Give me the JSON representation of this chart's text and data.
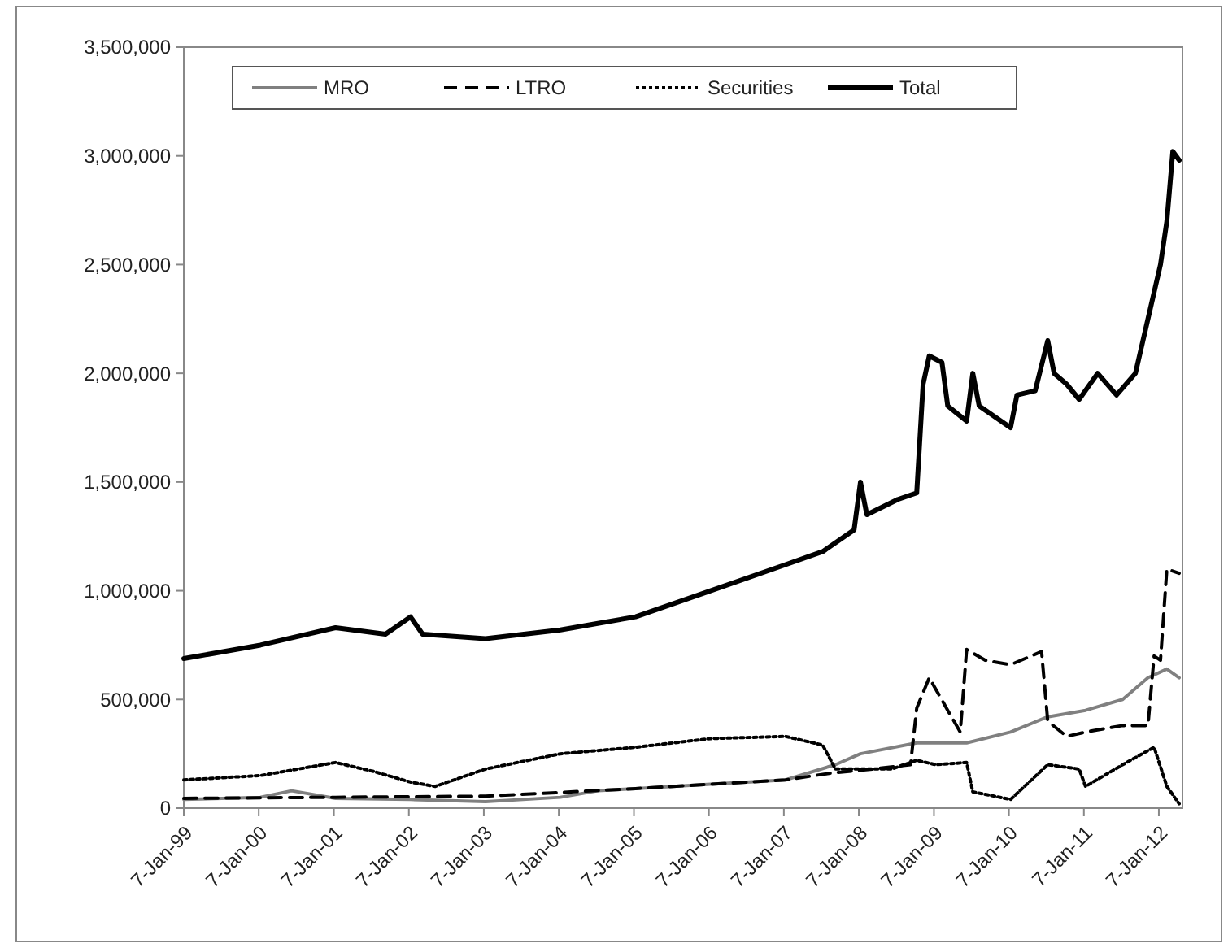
{
  "chart_data": {
    "type": "line",
    "legend": "top",
    "grid": false,
    "xlim": [
      "1999-01-07",
      "2012-05-01"
    ],
    "xticks": [
      {
        "value": "1999-01-07",
        "label": "7-Jan-99"
      },
      {
        "value": "2000-01-07",
        "label": "7-Jan-00"
      },
      {
        "value": "2001-01-07",
        "label": "7-Jan-01"
      },
      {
        "value": "2002-01-07",
        "label": "7-Jan-02"
      },
      {
        "value": "2003-01-07",
        "label": "7-Jan-03"
      },
      {
        "value": "2004-01-07",
        "label": "7-Jan-04"
      },
      {
        "value": "2005-01-07",
        "label": "7-Jan-05"
      },
      {
        "value": "2006-01-07",
        "label": "7-Jan-06"
      },
      {
        "value": "2007-01-07",
        "label": "7-Jan-07"
      },
      {
        "value": "2008-01-07",
        "label": "7-Jan-08"
      },
      {
        "value": "2009-01-07",
        "label": "7-Jan-09"
      },
      {
        "value": "2010-01-07",
        "label": "7-Jan-10"
      },
      {
        "value": "2011-01-07",
        "label": "7-Jan-11"
      },
      {
        "value": "2012-01-07",
        "label": "7-Jan-12"
      }
    ],
    "ylim": [
      0,
      3500000
    ],
    "yticks": [
      {
        "value": 0,
        "label": "0"
      },
      {
        "value": 500000,
        "label": "500,000"
      },
      {
        "value": 1000000,
        "label": "1,000,000"
      },
      {
        "value": 1500000,
        "label": "1,500,000"
      },
      {
        "value": 2000000,
        "label": "2,000,000"
      },
      {
        "value": 2500000,
        "label": "2,500,000"
      },
      {
        "value": 3000000,
        "label": "3,000,000"
      },
      {
        "value": 3500000,
        "label": "3,500,000"
      }
    ],
    "series": [
      {
        "name": "MRO",
        "color": "#808080",
        "line_style": "solid",
        "x": [
          "1999-01-07",
          "2000-01",
          "2000-06",
          "2001-01",
          "2002-01",
          "2003-01",
          "2004-01",
          "2004-07",
          "2005-01",
          "2006-01",
          "2007-01",
          "2007-09",
          "2008-01",
          "2008-10",
          "2009-06",
          "2010-01",
          "2010-07",
          "2011-01",
          "2011-07",
          "2011-11",
          "2012-02",
          "2012-04"
        ],
        "values": [
          40000,
          50000,
          80000,
          45000,
          40000,
          30000,
          50000,
          80000,
          90000,
          110000,
          130000,
          200000,
          250000,
          300000,
          300000,
          350000,
          420000,
          450000,
          500000,
          600000,
          640000,
          600000
        ]
      },
      {
        "name": "LTRO",
        "color": "#000000",
        "line_style": "dashed",
        "x": [
          "1999-01-07",
          "2001-01",
          "2003-01",
          "2005-01",
          "2007-01",
          "2007-08",
          "2008-03",
          "2008-09",
          "2008-10",
          "2008-12",
          "2009-03",
          "2009-05",
          "2009-06",
          "2009-09",
          "2010-01",
          "2010-06",
          "2010-07",
          "2010-10",
          "2011-01",
          "2011-07",
          "2011-11",
          "2011-12",
          "2012-01",
          "2012-02",
          "2012-04"
        ],
        "values": [
          45000,
          50000,
          55000,
          90000,
          130000,
          160000,
          180000,
          200000,
          460000,
          600000,
          450000,
          350000,
          730000,
          680000,
          660000,
          720000,
          400000,
          330000,
          350000,
          380000,
          380000,
          700000,
          680000,
          1100000,
          1080000
        ]
      },
      {
        "name": "Securities",
        "color": "#000000",
        "line_style": "dotted",
        "x": [
          "1999-01-07",
          "2000-01",
          "2001-01",
          "2001-07",
          "2002-01",
          "2002-05",
          "2003-01",
          "2004-01",
          "2005-01",
          "2006-01",
          "2007-01",
          "2007-07",
          "2007-09",
          "2008-06",
          "2008-10",
          "2009-01",
          "2009-06",
          "2009-07",
          "2010-01",
          "2010-07",
          "2010-12",
          "2011-01",
          "2011-07",
          "2011-12",
          "2012-02",
          "2012-04"
        ],
        "values": [
          130000,
          150000,
          210000,
          170000,
          120000,
          100000,
          180000,
          250000,
          280000,
          320000,
          330000,
          290000,
          180000,
          180000,
          220000,
          200000,
          210000,
          75000,
          40000,
          200000,
          180000,
          100000,
          200000,
          280000,
          100000,
          20000
        ]
      },
      {
        "name": "Total",
        "color": "#000000",
        "line_style": "solid",
        "x": [
          "1999-01-07",
          "2000-01",
          "2001-01",
          "2001-09",
          "2002-01",
          "2002-03",
          "2003-01",
          "2004-01",
          "2005-01",
          "2006-01",
          "2007-01",
          "2007-07",
          "2007-12",
          "2008-01",
          "2008-02",
          "2008-07",
          "2008-10",
          "2008-11",
          "2008-12",
          "2009-02",
          "2009-03",
          "2009-06",
          "2009-07",
          "2009-08",
          "2010-01",
          "2010-02",
          "2010-05",
          "2010-07",
          "2010-08",
          "2010-10",
          "2010-12",
          "2011-03",
          "2011-06",
          "2011-09",
          "2011-11",
          "2012-01",
          "2012-02",
          "2012-03",
          "2012-04"
        ],
        "values": [
          688000,
          750000,
          830000,
          800000,
          880000,
          800000,
          780000,
          820000,
          880000,
          1000000,
          1120000,
          1180000,
          1280000,
          1500000,
          1350000,
          1420000,
          1450000,
          1950000,
          2080000,
          2050000,
          1850000,
          1780000,
          2000000,
          1850000,
          1750000,
          1900000,
          1920000,
          2150000,
          2000000,
          1950000,
          1880000,
          2000000,
          1900000,
          2000000,
          2250000,
          2500000,
          2700000,
          3020000,
          2980000
        ]
      }
    ]
  }
}
